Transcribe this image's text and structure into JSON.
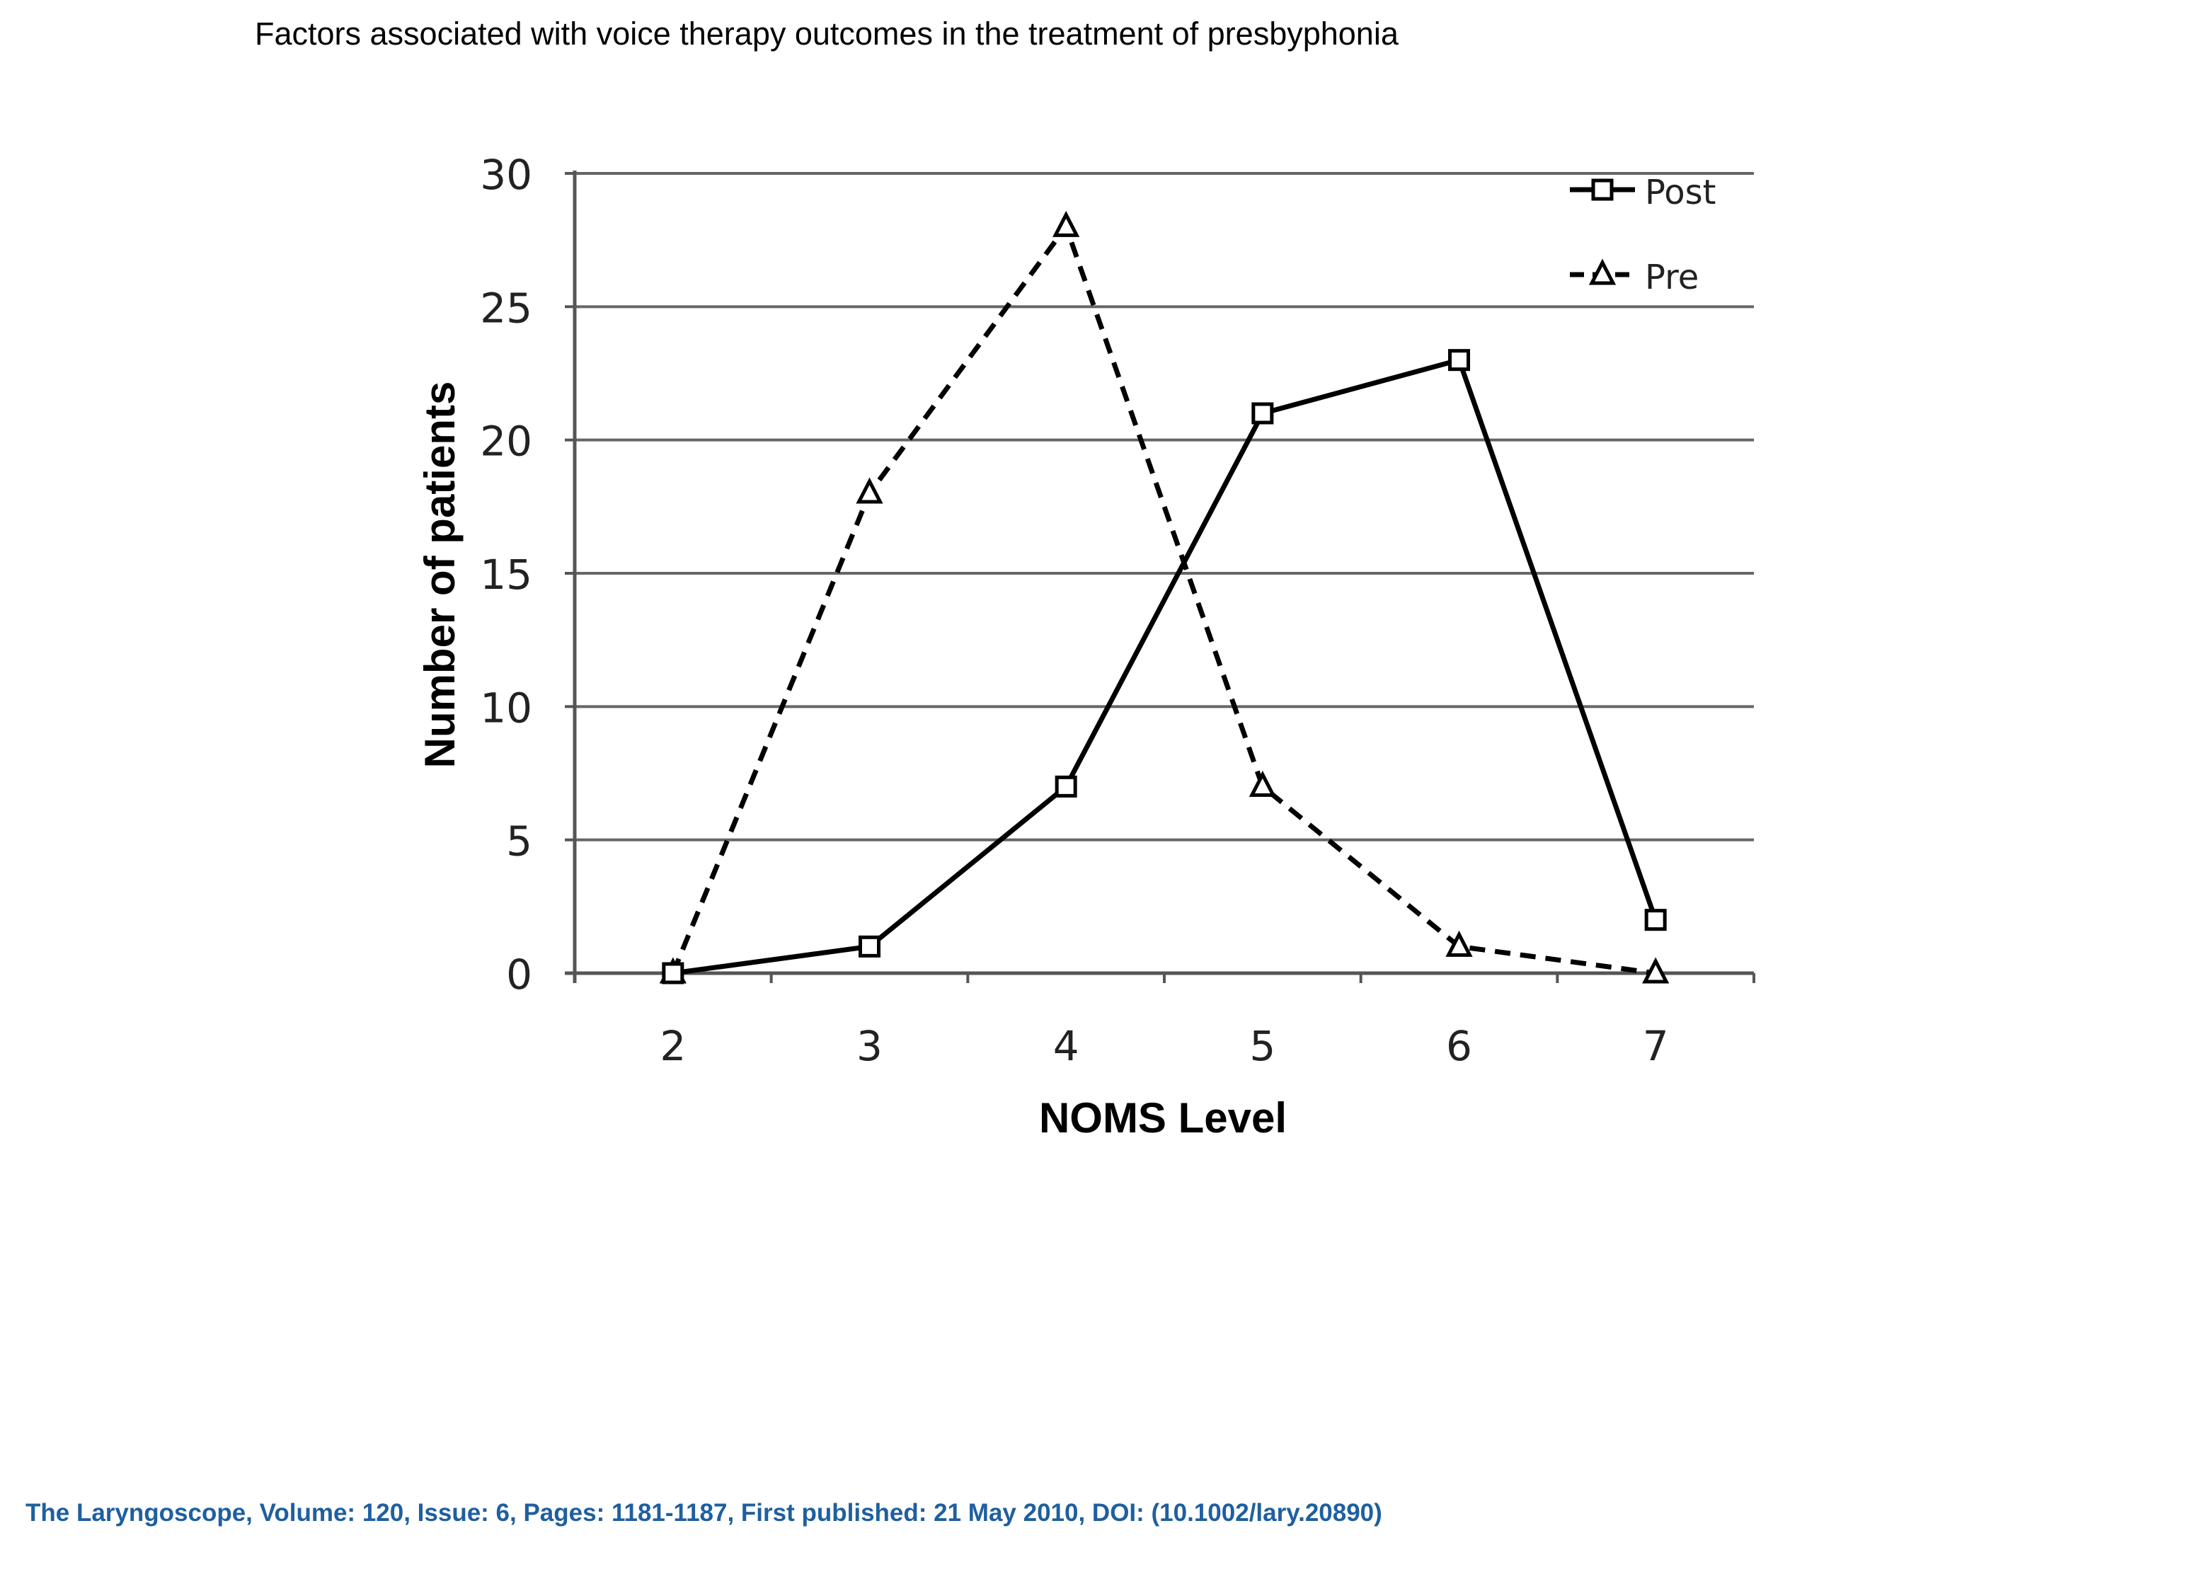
{
  "page_title": "Factors associated with voice therapy outcomes in the treatment of presbyphonia",
  "citation": "The Laryngoscope, Volume: 120, Issue: 6, Pages: 1181-1187, First published: 21 May 2010, DOI: (10.1002/lary.20890)",
  "colors": {
    "citation": "#1f5f9f",
    "text": "#000000",
    "gridline": "#666666",
    "series": "#000000"
  },
  "chart_data": {
    "type": "line",
    "title": "",
    "xlabel": "NOMS Level",
    "ylabel": "Number of patients",
    "x": [
      2,
      3,
      4,
      5,
      6,
      7
    ],
    "ylim": [
      0,
      30
    ],
    "yticks": [
      0,
      5,
      10,
      15,
      20,
      25,
      30
    ],
    "grid": true,
    "legend_position": "top-right",
    "series": [
      {
        "name": "Post",
        "values": [
          0,
          1,
          7,
          21,
          23,
          2
        ],
        "marker": "square",
        "line_style": "solid"
      },
      {
        "name": "Pre",
        "values": [
          0,
          18,
          28,
          7,
          1,
          0
        ],
        "marker": "triangle",
        "line_style": "dashed"
      }
    ]
  }
}
